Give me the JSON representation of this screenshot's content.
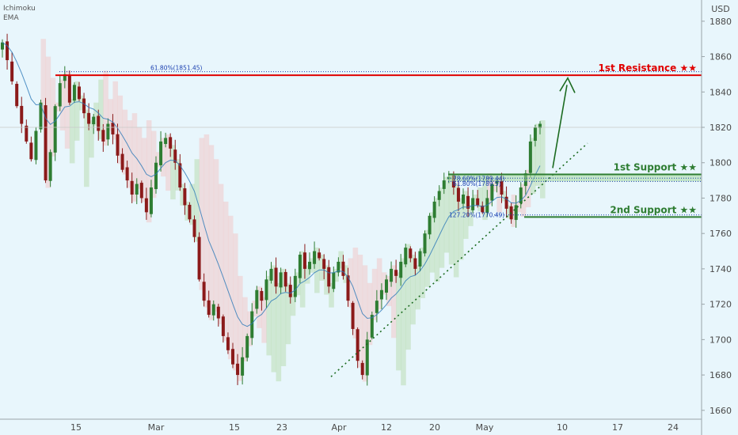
{
  "indicators": [
    "Ichimoku",
    "EMA"
  ],
  "colors": {
    "background": "#e8f6fc",
    "up": "#2e7d32",
    "down": "#8b1a1a",
    "resistance": "#e00000",
    "support": "#2e7d32",
    "fib": "#1a3fb0",
    "arrow": "#1b6b20",
    "cloud_green": "#b9dcb3",
    "cloud_red": "#f1c9c9",
    "ema": "#2a78b8"
  },
  "chart_data": {
    "type": "candlestick",
    "currency": "USD",
    "x_labels": [
      "15",
      "Mar",
      "15",
      "23",
      "Apr",
      "12",
      "20",
      "May",
      "10",
      "17",
      "24"
    ],
    "y_ticks": [
      1660,
      1680,
      1700,
      1720,
      1740,
      1760,
      1780,
      1800,
      1820,
      1840,
      1860,
      1880
    ],
    "ylim": [
      1655,
      1892
    ],
    "levels": [
      {
        "label": "1st Resistance ★★",
        "price_label": "1849.49",
        "value": 1849.49,
        "kind": "resistance"
      },
      {
        "label": "1st Support ★★",
        "price_label": "1793.42",
        "value": 1793.42,
        "kind": "support"
      },
      {
        "label": "2nd Support ★★",
        "price_label": "1769.31",
        "value": 1769.31,
        "kind": "support"
      }
    ],
    "fib_labels": [
      {
        "text": "61.80%(1851.45)",
        "value": 1851.45
      },
      {
        "text": "78.60%(1789.44)",
        "value": 1789.44
      },
      {
        "text": "61.80%(1789.5)",
        "value": 1789.5
      },
      {
        "text": "127.20%(1770.49)",
        "value": 1770.49
      }
    ],
    "close_series": [
      1868,
      1858,
      1846,
      1832,
      1822,
      1812,
      1802,
      1818,
      1834,
      1790,
      1806,
      1832,
      1845,
      1850,
      1834,
      1844,
      1836,
      1828,
      1822,
      1826,
      1818,
      1812,
      1822,
      1816,
      1804,
      1796,
      1790,
      1782,
      1788,
      1780,
      1772,
      1786,
      1800,
      1812,
      1814,
      1808,
      1800,
      1786,
      1776,
      1768,
      1758,
      1734,
      1722,
      1714,
      1720,
      1712,
      1702,
      1694,
      1686,
      1680,
      1690,
      1702,
      1716,
      1728,
      1722,
      1734,
      1740,
      1730,
      1738,
      1730,
      1724,
      1736,
      1748,
      1740,
      1744,
      1750,
      1746,
      1740,
      1730,
      1738,
      1744,
      1736,
      1722,
      1706,
      1688,
      1680,
      1700,
      1714,
      1722,
      1728,
      1734,
      1740,
      1736,
      1744,
      1752,
      1746,
      1740,
      1750,
      1760,
      1770,
      1778,
      1784,
      1790,
      1792,
      1786,
      1778,
      1782,
      1774,
      1780,
      1776,
      1772,
      1780,
      1788,
      1790,
      1782,
      1774,
      1768,
      1776,
      1786,
      1794,
      1812,
      1820,
      1822
    ]
  }
}
